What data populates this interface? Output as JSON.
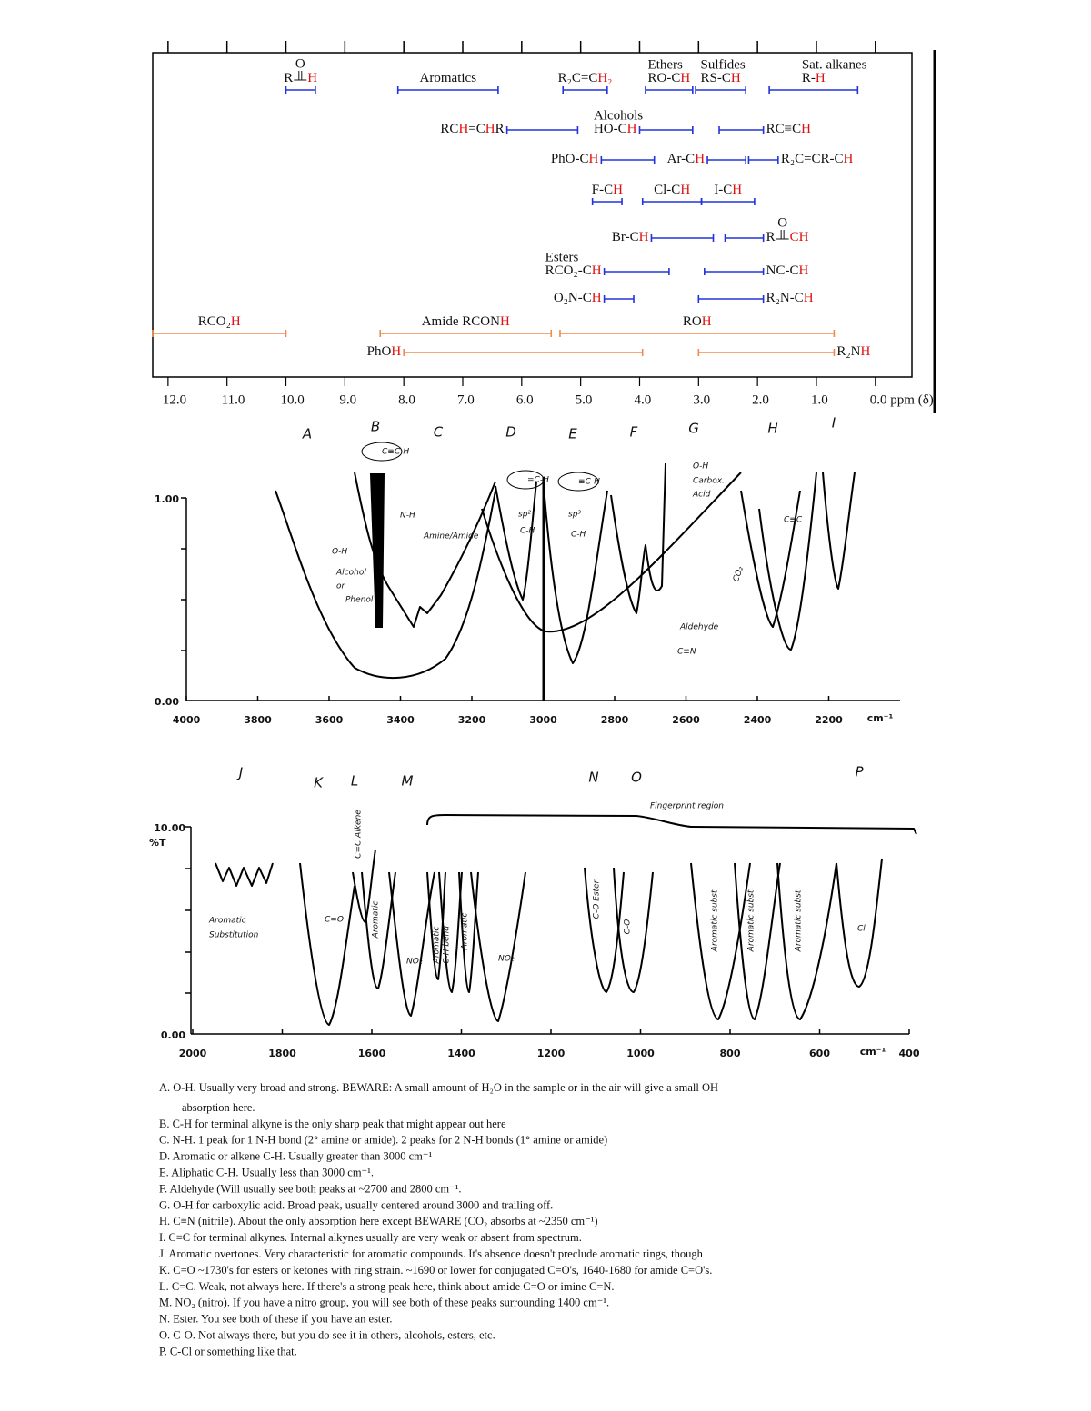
{
  "nmr": {
    "xlim": [
      12.26,
      -0.62
    ],
    "highlight": "#e01010",
    "ticks": [
      {
        "value": 12,
        "label": "12.0"
      },
      {
        "value": 11,
        "label": "11.0"
      },
      {
        "value": 10,
        "label": "10.0"
      },
      {
        "value": 9,
        "label": "9.0"
      },
      {
        "value": 8,
        "label": "8.0"
      },
      {
        "value": 7,
        "label": "7.0"
      },
      {
        "value": 6,
        "label": "6.0"
      },
      {
        "value": 5,
        "label": "5.0"
      },
      {
        "value": 4,
        "label": "4.0"
      },
      {
        "value": 3,
        "label": "3.0"
      },
      {
        "value": 2,
        "label": "2.0"
      },
      {
        "value": 1,
        "label": "1.0"
      },
      {
        "value": 0,
        "label": "0.0 ppm (δ)"
      }
    ],
    "rows": [
      [
        {
          "parts": [
            "R",
            "H"
          ],
          "carbonyl": "O",
          "from": 10.0,
          "to": 9.5,
          "color": "#2233dd",
          "place": "above"
        },
        {
          "parts": [
            "Aromatics"
          ],
          "from": 8.1,
          "to": 6.4,
          "color": "#2233dd",
          "place": "above"
        },
        {
          "parts": [
            "R₂C=C",
            "H₂"
          ],
          "from": 5.3,
          "to": 4.55,
          "color": "#2233dd",
          "place": "above"
        },
        {
          "heading": "Ethers",
          "parts": [
            "RO-C",
            "H"
          ],
          "from": 3.9,
          "to": 3.1,
          "color": "#2233dd",
          "place": "above"
        },
        {
          "heading": "Sulfides",
          "parts": [
            "RS-C",
            "H"
          ],
          "from": 3.05,
          "to": 2.2,
          "color": "#2233dd",
          "place": "above"
        },
        {
          "heading": "Sat. alkanes",
          "parts": [
            "R-",
            "H"
          ],
          "from": 1.8,
          "to": 0.3,
          "color": "#2233dd",
          "place": "above"
        }
      ],
      [
        {
          "parts": [
            "RC",
            "H",
            "=C",
            "H",
            "R"
          ],
          "from": 6.25,
          "to": 5.05,
          "color": "#2233dd",
          "place": "left"
        },
        {
          "heading": "Alcohols",
          "parts": [
            "HO-C",
            "H"
          ],
          "from": 4.0,
          "to": 3.1,
          "color": "#2233dd",
          "place": "left"
        },
        {
          "parts": [
            "RC≡C",
            "H"
          ],
          "from": 2.65,
          "to": 1.9,
          "color": "#2233dd",
          "place": "right"
        }
      ],
      [
        {
          "parts": [
            "PhO-C",
            "H"
          ],
          "from": 4.65,
          "to": 3.75,
          "color": "#2233dd",
          "place": "left"
        },
        {
          "parts": [
            "Ar-C",
            "H"
          ],
          "from": 2.85,
          "to": 2.2,
          "color": "#2233dd",
          "place": "left"
        },
        {
          "parts": [
            "R₂C=CR-C",
            "H"
          ],
          "from": 2.15,
          "to": 1.65,
          "color": "#2233dd",
          "place": "right"
        }
      ],
      [
        {
          "parts": [
            "F-C",
            "H"
          ],
          "from": 4.8,
          "to": 4.3,
          "color": "#2233dd",
          "place": "above"
        },
        {
          "parts": [
            "Cl-C",
            "H"
          ],
          "from": 3.95,
          "to": 2.95,
          "color": "#2233dd",
          "place": "above"
        },
        {
          "parts": [
            "I-C",
            "H"
          ],
          "from": 2.95,
          "to": 2.05,
          "color": "#2233dd",
          "place": "above"
        }
      ],
      [
        {
          "parts": [
            "Br-C",
            "H"
          ],
          "from": 3.8,
          "to": 2.75,
          "color": "#2233dd",
          "place": "left"
        },
        {
          "parts": [
            "R",
            "CH"
          ],
          "carbonyl": "O",
          "from": 2.55,
          "to": 1.9,
          "color": "#2233dd",
          "place": "right"
        }
      ],
      [
        {
          "heading": "Esters",
          "parts": [
            "RCO₂-C",
            "H"
          ],
          "from": 4.6,
          "to": 3.5,
          "color": "#2233dd",
          "place": "left"
        },
        {
          "parts": [
            "NC-C",
            "H"
          ],
          "from": 2.9,
          "to": 1.9,
          "color": "#2233dd",
          "place": "right"
        }
      ],
      [
        {
          "parts": [
            "O₂N-C",
            "H"
          ],
          "from": 4.6,
          "to": 4.1,
          "color": "#2233dd",
          "place": "left"
        },
        {
          "parts": [
            "R₂N-C",
            "H"
          ],
          "from": 3.0,
          "to": 1.9,
          "color": "#2233dd",
          "place": "right"
        }
      ],
      [
        {
          "parts": [
            "RCO₂",
            "H"
          ],
          "from": 12.26,
          "to": 10.0,
          "color": "#f08a4b",
          "place": "above"
        },
        {
          "parts": [
            "Amide RCON",
            "H"
          ],
          "from": 8.4,
          "to": 5.5,
          "color": "#f08a4b",
          "place": "above"
        },
        {
          "parts": [
            "RO",
            "H"
          ],
          "from": 5.35,
          "to": 0.7,
          "color": "#f08a4b",
          "place": "above"
        }
      ],
      [
        {
          "parts": [
            "PhO",
            "H"
          ],
          "from": 8.0,
          "to": 3.95,
          "color": "#f08a4b",
          "place": "left"
        },
        {
          "parts": [
            "R₂N",
            "H"
          ],
          "from": 3.0,
          "to": 0.7,
          "color": "#f08a4b",
          "place": "right"
        }
      ]
    ]
  },
  "ir": [
    {
      "xlim": [
        4000,
        2000
      ],
      "xticks": [
        4000,
        3800,
        3600,
        3400,
        3200,
        3000,
        2800,
        2600,
        2400,
        2200
      ],
      "unit": "cm⁻¹",
      "ytop": "1.00",
      "ybottom": "0.00",
      "letters": [
        "A",
        "B",
        "C",
        "D",
        "E",
        "F",
        "G",
        "H",
        "I"
      ],
      "notes": [
        "C≡C-H",
        "N-H",
        "Amine/Amide",
        "O-H",
        "Alcohol",
        "or",
        "Phenol",
        "=C-H",
        "sp²",
        "C-H",
        "≡C-H",
        "sp³",
        "C-H",
        "O-H",
        "Carbox.",
        "Acid",
        "Aldehyde",
        "C≡N",
        "CO₂",
        "C≡C"
      ]
    },
    {
      "xlim": [
        2000,
        400
      ],
      "xticks": [
        2000,
        1800,
        1600,
        1400,
        1200,
        1000,
        800,
        600,
        400
      ],
      "unit": "cm⁻¹",
      "ytop": "10.00",
      "ylabel": "%T",
      "ybottom": "0.00",
      "letters": [
        "J",
        "K",
        "L",
        "M",
        "N",
        "O",
        "P"
      ],
      "notes": [
        "Fingerprint region",
        "Aromatic",
        "Substitution",
        "C=O",
        "C=C Alkene",
        "Aromatic",
        "NO₂",
        "Aromatic",
        "C-H bend",
        "Aromatic",
        "NO₂",
        "C-O Ester",
        "C-O",
        "Aromatic subst.",
        "Aromatic subst.",
        "Aromatic subst.",
        "Cl"
      ]
    }
  ],
  "notes": [
    [
      "A. O-H. Usually very broad and strong. BEWARE: A small amount of H₂O in the sample or in the air will give a small OH",
      "absorption here."
    ],
    [
      "B. C-H for terminal alkyne is the only sharp peak that might appear out here"
    ],
    [
      "C. N-H. 1 peak for 1 N-H bond (2° amine or amide). 2 peaks for 2 N-H bonds (1° amine or amide)"
    ],
    [
      "D. Aromatic or alkene C-H. Usually greater than 3000 cm⁻¹"
    ],
    [
      "E. Aliphatic C-H. Usually less than 3000 cm⁻¹."
    ],
    [
      "F. Aldehyde (Will usually see both peaks at ~2700 and 2800 cm⁻¹."
    ],
    [
      "G. O-H for carboxylic acid. Broad peak, usually centered around 3000 and trailing off."
    ],
    [
      "H. C≡N (nitrile). About the only absorption here except BEWARE (CO₂ absorbs at ~2350 cm⁻¹)"
    ],
    [
      "I. C≡C for terminal alkynes. Internal alkynes usually are very weak or absent from spectrum."
    ],
    [
      "J. Aromatic overtones. Very characteristic for aromatic compounds. It's absence doesn't preclude aromatic rings, though"
    ],
    [
      "K. C=O ~1730's for esters or ketones with ring strain. ~1690 or lower for conjugated C=O's, 1640-1680 for amide C=O's."
    ],
    [
      "L. C=C. Weak, not always here. If there's a strong peak here, think about amide C=O or imine C=N."
    ],
    [
      "M. NO₂ (nitro). If you have a nitro group, you will see both of these peaks surrounding 1400 cm⁻¹."
    ],
    [
      "N. Ester. You see both of these if you have an ester."
    ],
    [
      "O. C-O. Not always there, but you do see it in others, alcohols, esters, etc."
    ],
    [
      "P. C-Cl or something like that."
    ]
  ]
}
